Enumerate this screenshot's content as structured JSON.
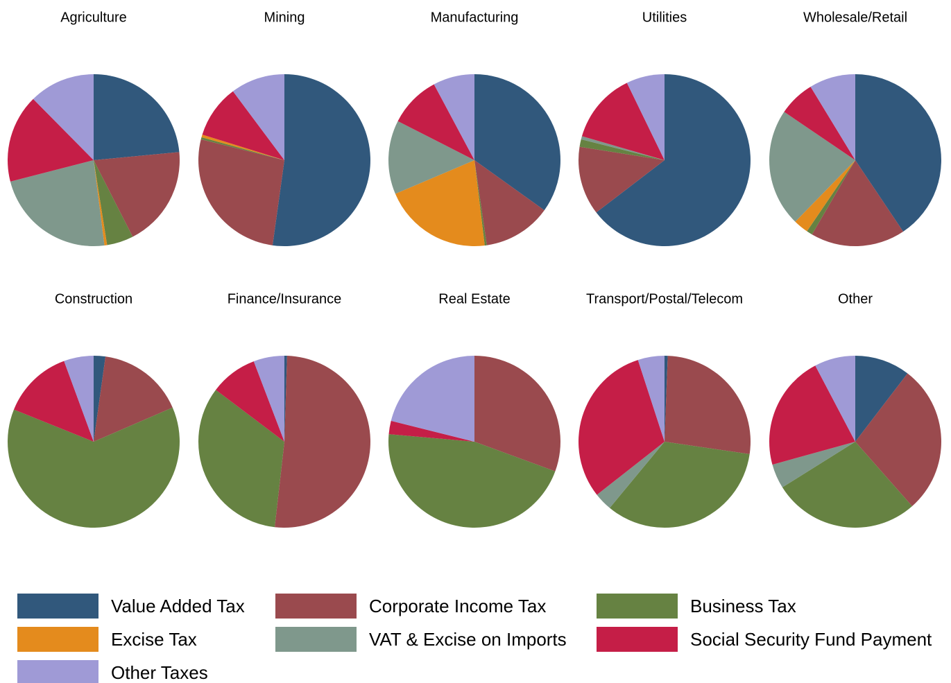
{
  "chart_data": {
    "type": "pie",
    "categories": [
      "Value Added Tax",
      "Corporate Income Tax",
      "Business Tax",
      "Excise Tax",
      "VAT & Excise on Imports",
      "Social Security Fund Payment",
      "Other Taxes"
    ],
    "colors": [
      "#31587c",
      "#9a4a4e",
      "#668242",
      "#e48b1d",
      "#7f988c",
      "#c51e47",
      "#9f9ad6"
    ],
    "series": [
      {
        "name": "Agriculture",
        "values": [
          23.5,
          19,
          5,
          0.5,
          23,
          16.6,
          12.4
        ]
      },
      {
        "name": "Mining",
        "values": [
          52.2,
          26.7,
          0.4,
          0.5,
          0,
          10,
          10.2
        ]
      },
      {
        "name": "Manufacturing",
        "values": [
          34.9,
          12.8,
          0.4,
          20.5,
          13.9,
          9.7,
          7.8
        ]
      },
      {
        "name": "Utilities",
        "values": [
          64.6,
          12.9,
          1.4,
          0,
          0.6,
          13.3,
          7.2
        ]
      },
      {
        "name": "Wholesale/Retail",
        "values": [
          40.6,
          17.8,
          1.1,
          2.8,
          22.2,
          6.8,
          8.7
        ]
      },
      {
        "name": "Construction",
        "values": [
          2.2,
          16.3,
          62.6,
          0,
          0,
          13.3,
          5.6
        ]
      },
      {
        "name": "Finance/Insurance",
        "values": [
          0.5,
          51.3,
          33.5,
          0,
          0,
          8.9,
          5.8
        ]
      },
      {
        "name": "Real Estate",
        "values": [
          0,
          30.6,
          45.8,
          0,
          0,
          2.5,
          21.1
        ]
      },
      {
        "name": "Transport/Postal/Telecom",
        "values": [
          0.6,
          26.7,
          33.7,
          0,
          3.4,
          30.6,
          5
        ]
      },
      {
        "name": "Other",
        "values": [
          10.4,
          28.1,
          27.6,
          0,
          4.6,
          21.6,
          7.7
        ]
      }
    ]
  }
}
